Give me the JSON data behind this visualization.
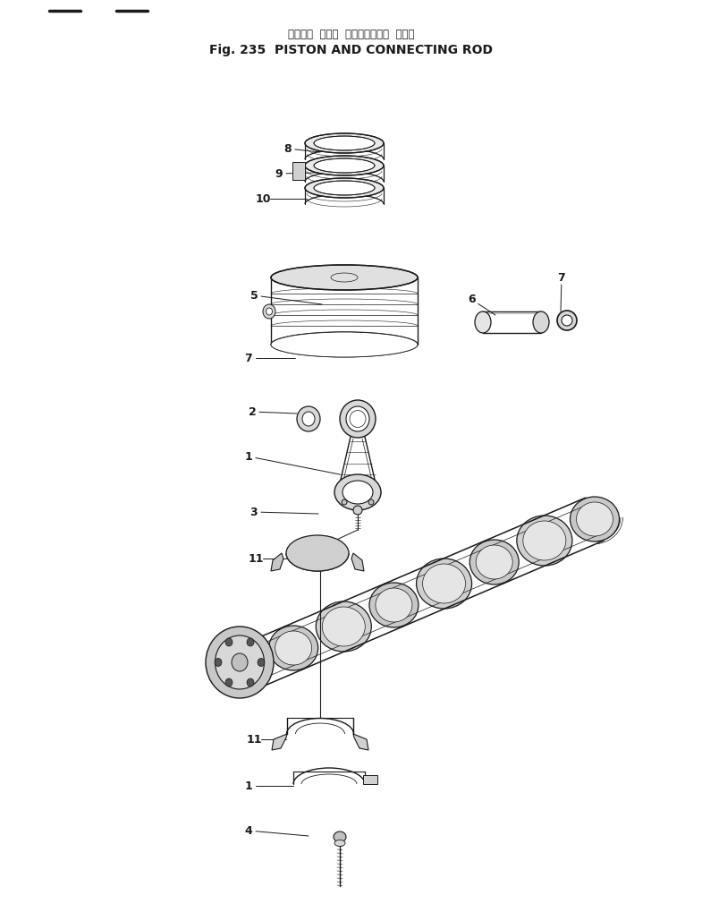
{
  "title_jp": "ピストン  および  コネクティング  ロッド",
  "title_en": "Fig. 235  PISTON AND CONNECTING ROD",
  "bg_color": "#ffffff",
  "line_color": "#1a1a1a",
  "figw": 7.85,
  "figh": 10.29,
  "dpi": 100
}
